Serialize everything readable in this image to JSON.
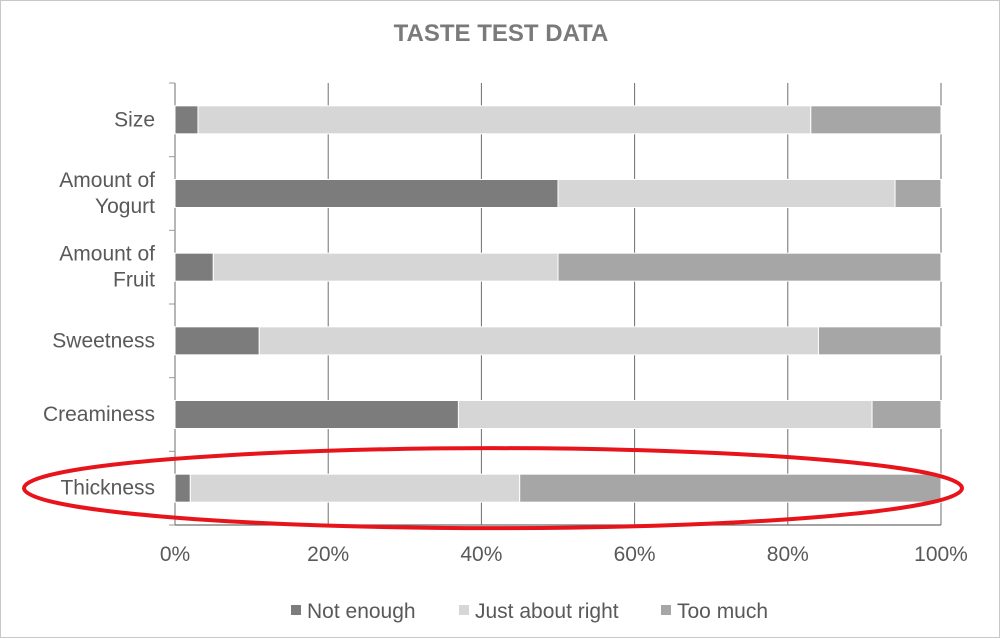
{
  "chart_data": {
    "type": "bar",
    "orientation": "horizontal",
    "stacked": "percent",
    "title": "TASTE TEST DATA",
    "categories": [
      "Size",
      "Amount of Yogurt",
      "Amount of Fruit",
      "Sweetness",
      "Creaminess",
      "Thickness"
    ],
    "category_lines": [
      [
        "Size"
      ],
      [
        "Amount of",
        "Yogurt"
      ],
      [
        "Amount of",
        "Fruit"
      ],
      [
        "Sweetness"
      ],
      [
        "Creaminess"
      ],
      [
        "Thickness"
      ]
    ],
    "series": [
      {
        "name": "Not enough",
        "values": [
          3,
          50,
          5,
          11,
          37,
          2
        ]
      },
      {
        "name": "Just about right",
        "values": [
          80,
          44,
          45,
          73,
          54,
          43
        ]
      },
      {
        "name": "Too much",
        "values": [
          17,
          6,
          50,
          16,
          9,
          55
        ]
      }
    ],
    "xlim": [
      0,
      100
    ],
    "x_ticks": [
      "0%",
      "20%",
      "40%",
      "60%",
      "80%",
      "100%"
    ],
    "grid": "vertical",
    "legend": "bottom",
    "highlight": {
      "category": "Thickness",
      "shape": "ellipse",
      "color": "#e8141b"
    },
    "colors": {
      "series": [
        "#7c7c7c",
        "#d6d6d6",
        "#a6a6a6"
      ],
      "gridline": "#6e6e6e",
      "title": "#7a7a7a",
      "text": "#595959"
    }
  }
}
